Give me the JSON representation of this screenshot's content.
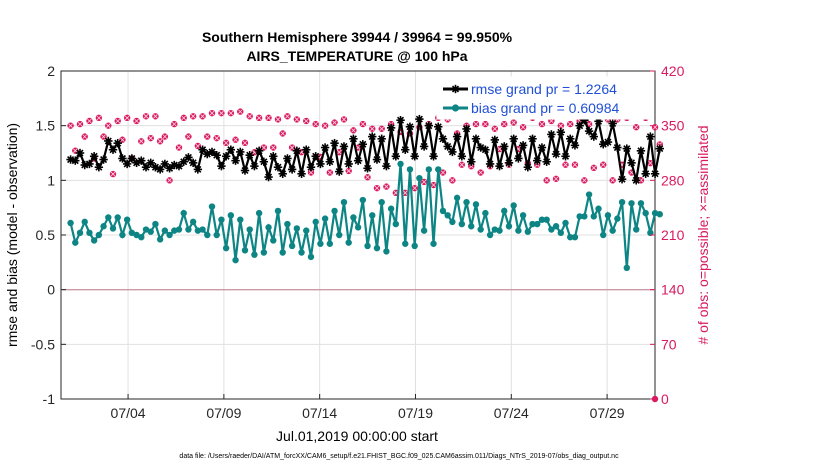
{
  "chart_data": {
    "type": "line",
    "title": "Southern Hemisphere 39944 / 39964 = 99.950%",
    "subtitle": "AIRS_TEMPERATURE @ 100 hPa",
    "xlabel": "Jul.01,2019 00:00:00 start",
    "ylabel": "rmse and bias (model - observation)",
    "y2label": "# of obs: o=possible; ×=assimilated",
    "footer": "data file: /Users/raeder/DAI/ATM_forcXX/CAM6_setup/f.e21.FHIST_BGC.f09_025.CAM6assim.011/Diags_NTrS_2019-07/obs_diag_output.nc",
    "grid": true,
    "legend_position": "top-right",
    "x_range_days": [
      0.5,
      31.5
    ],
    "ylim": [
      -1,
      2
    ],
    "y2lim": [
      0,
      420
    ],
    "x_ticks": [
      {
        "day": 4,
        "label": "07/04"
      },
      {
        "day": 9,
        "label": "07/09"
      },
      {
        "day": 14,
        "label": "07/14"
      },
      {
        "day": 19,
        "label": "07/19"
      },
      {
        "day": 24,
        "label": "07/24"
      },
      {
        "day": 29,
        "label": "07/29"
      }
    ],
    "y_ticks": [
      {
        "value": 2,
        "label": "2"
      },
      {
        "value": 1.5,
        "label": "1.5"
      },
      {
        "value": 1,
        "label": "1"
      },
      {
        "value": 0.5,
        "label": "0.5"
      },
      {
        "value": 0,
        "label": "0"
      },
      {
        "value": -0.5,
        "label": "-0.5"
      },
      {
        "value": -1,
        "label": "-1"
      }
    ],
    "y2_ticks": [
      {
        "value": 420,
        "label": "420"
      },
      {
        "value": 350,
        "label": "350"
      },
      {
        "value": 280,
        "label": "280"
      },
      {
        "value": 210,
        "label": "210"
      },
      {
        "value": 140,
        "label": "140"
      },
      {
        "value": 70,
        "label": "70"
      },
      {
        "value": 0,
        "label": "0"
      }
    ],
    "colors": {
      "rmse": "#000000",
      "bias": "#0e8585",
      "obs": "#d81b60",
      "zero_line": "#cc9aa6",
      "grid": "#e0e0e0",
      "legend_text": "#1f4fd6"
    },
    "series": [
      {
        "name": "rmse grand pr = 1.2264",
        "key": "rmse",
        "values": [
          1.19,
          1.18,
          1.25,
          1.14,
          1.15,
          1.22,
          1.12,
          1.19,
          1.36,
          1.28,
          1.34,
          1.2,
          1.15,
          1.2,
          1.16,
          1.18,
          1.12,
          1.16,
          1.12,
          1.1,
          1.15,
          1.11,
          1.14,
          1.13,
          1.17,
          1.21,
          1.16,
          1.1,
          1.28,
          1.24,
          1.26,
          1.23,
          1.13,
          1.22,
          1.28,
          1.18,
          1.26,
          1.09,
          1.23,
          1.13,
          1.27,
          1.17,
          1.03,
          1.22,
          1.12,
          1.06,
          1.2,
          1.1,
          1.27,
          1.06,
          1.28,
          1.12,
          1.22,
          1.15,
          1.3,
          1.17,
          1.34,
          1.08,
          1.31,
          1.15,
          1.38,
          1.18,
          1.33,
          1.11,
          1.4,
          1.19,
          1.38,
          1.13,
          1.48,
          1.22,
          1.55,
          1.28,
          1.49,
          1.22,
          1.56,
          1.31,
          1.5,
          1.22,
          1.49,
          1.38,
          1.31,
          1.26,
          1.4,
          1.22,
          1.47,
          1.17,
          1.38,
          1.3,
          1.28,
          1.15,
          1.37,
          1.13,
          1.31,
          1.16,
          1.38,
          1.2,
          1.32,
          1.12,
          1.38,
          1.18,
          1.3,
          1.17,
          1.42,
          1.24,
          1.44,
          1.22,
          1.38,
          1.32,
          1.5,
          1.55,
          1.45,
          1.4,
          1.54,
          1.33,
          1.35,
          1.52,
          1.3,
          1.01,
          1.29,
          1.16,
          1.0,
          1.27,
          1.06,
          1.4,
          1.06,
          1.29
        ],
        "marker": "asterisk"
      },
      {
        "name": "bias grand pr = 0.60984",
        "key": "bias",
        "values": [
          0.61,
          0.43,
          0.52,
          0.62,
          0.52,
          0.45,
          0.5,
          0.58,
          0.66,
          0.56,
          0.66,
          0.5,
          0.64,
          0.52,
          0.5,
          0.48,
          0.55,
          0.53,
          0.6,
          0.46,
          0.54,
          0.5,
          0.54,
          0.55,
          0.7,
          0.55,
          0.62,
          0.54,
          0.55,
          0.5,
          0.76,
          0.5,
          0.64,
          0.38,
          0.68,
          0.27,
          0.64,
          0.36,
          0.55,
          0.32,
          0.7,
          0.34,
          0.57,
          0.45,
          0.72,
          0.34,
          0.6,
          0.4,
          0.56,
          0.34,
          0.54,
          0.3,
          0.62,
          0.42,
          0.65,
          0.42,
          0.72,
          0.5,
          0.8,
          0.43,
          0.66,
          0.57,
          0.82,
          0.4,
          0.68,
          0.38,
          0.8,
          0.35,
          0.74,
          0.6,
          1.15,
          0.42,
          1.1,
          0.4,
          1.02,
          0.54,
          1.1,
          0.42,
          1.1,
          0.72,
          0.68,
          0.62,
          0.84,
          0.6,
          0.8,
          0.58,
          0.78,
          0.55,
          0.7,
          0.5,
          0.55,
          0.54,
          0.72,
          0.58,
          0.77,
          0.54,
          0.68,
          0.53,
          0.6,
          0.6,
          0.64,
          0.64,
          0.55,
          0.58,
          0.52,
          0.61,
          0.48,
          0.48,
          0.67,
          0.67,
          0.87,
          0.67,
          0.74,
          0.5,
          0.68,
          0.54,
          0.65,
          0.8,
          0.2,
          0.79,
          0.55,
          0.79,
          0.7,
          0.52,
          0.7,
          0.69
        ],
        "marker": "dot"
      },
      {
        "name": "# of obs possible",
        "key": "obs",
        "axis": "right",
        "values": [
          350,
          318,
          352,
          336,
          356,
          308,
          360,
          336,
          350,
          288,
          356,
          332,
          360,
          308,
          356,
          330,
          362,
          334,
          362,
          330,
          336,
          280,
          352,
          322,
          360,
          336,
          362,
          324,
          362,
          336,
          366,
          334,
          366,
          328,
          366,
          332,
          368,
          328,
          362,
          316,
          360,
          322,
          360,
          322,
          358,
          340,
          362,
          322,
          358,
          316,
          356,
          290,
          352,
          310,
          350,
          290,
          354,
          316,
          358,
          292,
          344,
          322,
          352,
          284,
          346,
          270,
          346,
          272,
          352,
          264,
          342,
          264,
          340,
          270,
          348,
          278,
          352,
          274,
          360,
          290,
          358,
          280,
          340,
          300,
          350,
          298,
          352,
          290,
          352,
          298,
          346,
          320,
          352,
          300,
          354,
          320,
          348,
          302,
          360,
          300,
          352,
          280,
          356,
          282,
          350,
          300,
          352,
          300,
          356,
          280,
          352,
          296,
          360,
          300,
          358,
          280,
          358,
          300,
          360,
          290,
          348,
          280,
          360,
          302,
          348,
          326
        ]
      }
    ]
  }
}
